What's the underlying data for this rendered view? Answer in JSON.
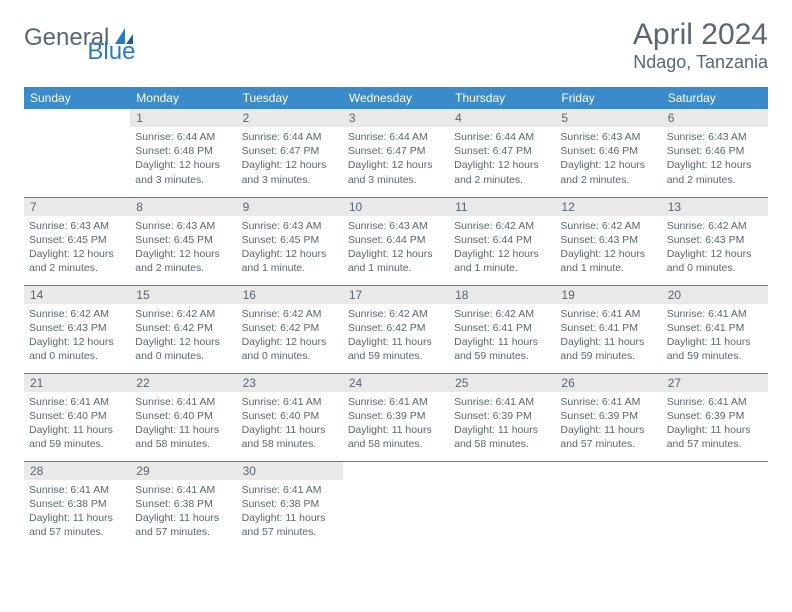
{
  "brand": {
    "general": "General",
    "blue": "Blue"
  },
  "title": "April 2024",
  "location": "Ndago, Tanzania",
  "colors": {
    "header_bg": "#3b8bca",
    "text": "#5a6670",
    "daynum_bg": "#e9e9e9",
    "rule": "#3b8bca"
  },
  "daynames": [
    "Sunday",
    "Monday",
    "Tuesday",
    "Wednesday",
    "Thursday",
    "Friday",
    "Saturday"
  ],
  "weeks": [
    [
      {
        "num": "",
        "lines": []
      },
      {
        "num": "1",
        "lines": [
          "Sunrise: 6:44 AM",
          "Sunset: 6:48 PM",
          "Daylight: 12 hours",
          "and 3 minutes."
        ]
      },
      {
        "num": "2",
        "lines": [
          "Sunrise: 6:44 AM",
          "Sunset: 6:47 PM",
          "Daylight: 12 hours",
          "and 3 minutes."
        ]
      },
      {
        "num": "3",
        "lines": [
          "Sunrise: 6:44 AM",
          "Sunset: 6:47 PM",
          "Daylight: 12 hours",
          "and 3 minutes."
        ]
      },
      {
        "num": "4",
        "lines": [
          "Sunrise: 6:44 AM",
          "Sunset: 6:47 PM",
          "Daylight: 12 hours",
          "and 2 minutes."
        ]
      },
      {
        "num": "5",
        "lines": [
          "Sunrise: 6:43 AM",
          "Sunset: 6:46 PM",
          "Daylight: 12 hours",
          "and 2 minutes."
        ]
      },
      {
        "num": "6",
        "lines": [
          "Sunrise: 6:43 AM",
          "Sunset: 6:46 PM",
          "Daylight: 12 hours",
          "and 2 minutes."
        ]
      }
    ],
    [
      {
        "num": "7",
        "lines": [
          "Sunrise: 6:43 AM",
          "Sunset: 6:45 PM",
          "Daylight: 12 hours",
          "and 2 minutes."
        ]
      },
      {
        "num": "8",
        "lines": [
          "Sunrise: 6:43 AM",
          "Sunset: 6:45 PM",
          "Daylight: 12 hours",
          "and 2 minutes."
        ]
      },
      {
        "num": "9",
        "lines": [
          "Sunrise: 6:43 AM",
          "Sunset: 6:45 PM",
          "Daylight: 12 hours",
          "and 1 minute."
        ]
      },
      {
        "num": "10",
        "lines": [
          "Sunrise: 6:43 AM",
          "Sunset: 6:44 PM",
          "Daylight: 12 hours",
          "and 1 minute."
        ]
      },
      {
        "num": "11",
        "lines": [
          "Sunrise: 6:42 AM",
          "Sunset: 6:44 PM",
          "Daylight: 12 hours",
          "and 1 minute."
        ]
      },
      {
        "num": "12",
        "lines": [
          "Sunrise: 6:42 AM",
          "Sunset: 6:43 PM",
          "Daylight: 12 hours",
          "and 1 minute."
        ]
      },
      {
        "num": "13",
        "lines": [
          "Sunrise: 6:42 AM",
          "Sunset: 6:43 PM",
          "Daylight: 12 hours",
          "and 0 minutes."
        ]
      }
    ],
    [
      {
        "num": "14",
        "lines": [
          "Sunrise: 6:42 AM",
          "Sunset: 6:43 PM",
          "Daylight: 12 hours",
          "and 0 minutes."
        ]
      },
      {
        "num": "15",
        "lines": [
          "Sunrise: 6:42 AM",
          "Sunset: 6:42 PM",
          "Daylight: 12 hours",
          "and 0 minutes."
        ]
      },
      {
        "num": "16",
        "lines": [
          "Sunrise: 6:42 AM",
          "Sunset: 6:42 PM",
          "Daylight: 12 hours",
          "and 0 minutes."
        ]
      },
      {
        "num": "17",
        "lines": [
          "Sunrise: 6:42 AM",
          "Sunset: 6:42 PM",
          "Daylight: 11 hours",
          "and 59 minutes."
        ]
      },
      {
        "num": "18",
        "lines": [
          "Sunrise: 6:42 AM",
          "Sunset: 6:41 PM",
          "Daylight: 11 hours",
          "and 59 minutes."
        ]
      },
      {
        "num": "19",
        "lines": [
          "Sunrise: 6:41 AM",
          "Sunset: 6:41 PM",
          "Daylight: 11 hours",
          "and 59 minutes."
        ]
      },
      {
        "num": "20",
        "lines": [
          "Sunrise: 6:41 AM",
          "Sunset: 6:41 PM",
          "Daylight: 11 hours",
          "and 59 minutes."
        ]
      }
    ],
    [
      {
        "num": "21",
        "lines": [
          "Sunrise: 6:41 AM",
          "Sunset: 6:40 PM",
          "Daylight: 11 hours",
          "and 59 minutes."
        ]
      },
      {
        "num": "22",
        "lines": [
          "Sunrise: 6:41 AM",
          "Sunset: 6:40 PM",
          "Daylight: 11 hours",
          "and 58 minutes."
        ]
      },
      {
        "num": "23",
        "lines": [
          "Sunrise: 6:41 AM",
          "Sunset: 6:40 PM",
          "Daylight: 11 hours",
          "and 58 minutes."
        ]
      },
      {
        "num": "24",
        "lines": [
          "Sunrise: 6:41 AM",
          "Sunset: 6:39 PM",
          "Daylight: 11 hours",
          "and 58 minutes."
        ]
      },
      {
        "num": "25",
        "lines": [
          "Sunrise: 6:41 AM",
          "Sunset: 6:39 PM",
          "Daylight: 11 hours",
          "and 58 minutes."
        ]
      },
      {
        "num": "26",
        "lines": [
          "Sunrise: 6:41 AM",
          "Sunset: 6:39 PM",
          "Daylight: 11 hours",
          "and 57 minutes."
        ]
      },
      {
        "num": "27",
        "lines": [
          "Sunrise: 6:41 AM",
          "Sunset: 6:39 PM",
          "Daylight: 11 hours",
          "and 57 minutes."
        ]
      }
    ],
    [
      {
        "num": "28",
        "lines": [
          "Sunrise: 6:41 AM",
          "Sunset: 6:38 PM",
          "Daylight: 11 hours",
          "and 57 minutes."
        ]
      },
      {
        "num": "29",
        "lines": [
          "Sunrise: 6:41 AM",
          "Sunset: 6:38 PM",
          "Daylight: 11 hours",
          "and 57 minutes."
        ]
      },
      {
        "num": "30",
        "lines": [
          "Sunrise: 6:41 AM",
          "Sunset: 6:38 PM",
          "Daylight: 11 hours",
          "and 57 minutes."
        ]
      },
      {
        "num": "",
        "lines": []
      },
      {
        "num": "",
        "lines": []
      },
      {
        "num": "",
        "lines": []
      },
      {
        "num": "",
        "lines": []
      }
    ]
  ]
}
